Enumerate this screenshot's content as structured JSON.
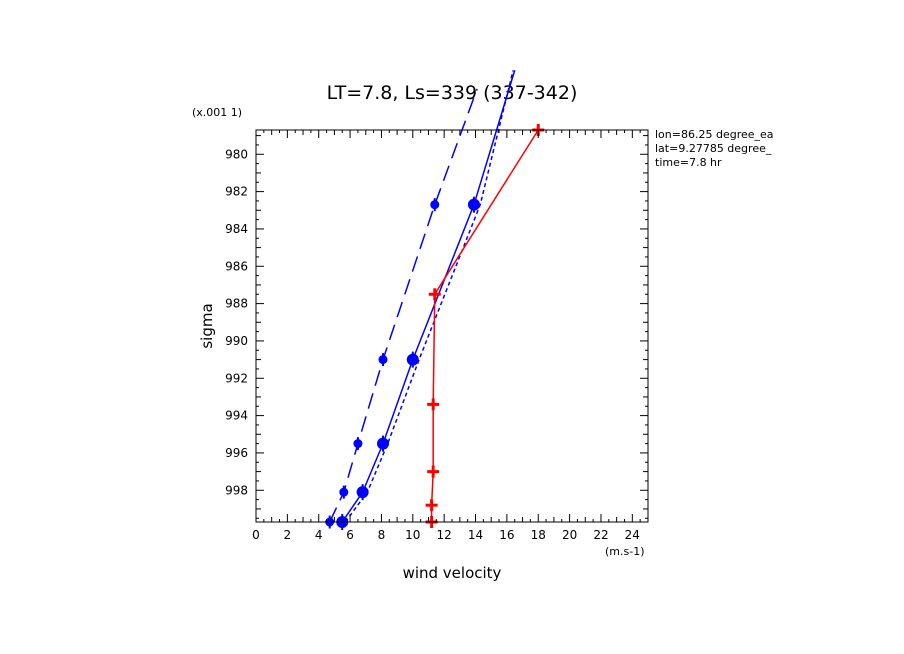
{
  "chart_data": {
    "type": "line",
    "title": "LT=7.8, Ls=339 (337-342)",
    "xlabel": "wind velocity",
    "ylabel": "sigma",
    "x_units": "(m.s-1)",
    "y_scale_note": "(x.001 1)",
    "xlim": [
      0,
      25
    ],
    "ylim": [
      999.7,
      978.7
    ],
    "x_ticks": [
      0,
      2,
      4,
      6,
      8,
      10,
      12,
      14,
      16,
      18,
      20,
      22,
      24
    ],
    "y_ticks": [
      980,
      982,
      984,
      986,
      988,
      990,
      992,
      994,
      996,
      998
    ],
    "annotations": [
      "lon=86.25 degree_ea",
      "lat=9.27785 degree_",
      "time=7.8 hr"
    ],
    "grid": false,
    "series": [
      {
        "style": "long-dash",
        "color": "#0000ff",
        "marker": "small",
        "points": [
          [
            4.7,
            999.7
          ],
          [
            5.6,
            998.1
          ],
          [
            6.5,
            995.5
          ],
          [
            8.1,
            991.0
          ],
          [
            11.4,
            982.7
          ],
          [
            14.1,
            976.5
          ]
        ]
      },
      {
        "style": "solid",
        "color": "#0000ff",
        "marker": "large",
        "points": [
          [
            5.5,
            999.7
          ],
          [
            6.8,
            998.1
          ],
          [
            8.1,
            995.5
          ],
          [
            10.0,
            991.0
          ],
          [
            13.9,
            982.7
          ],
          [
            16.5,
            975.5
          ]
        ]
      },
      {
        "style": "short-dash",
        "color": "#0000ff",
        "marker": "none",
        "points": [
          [
            5.7,
            999.7
          ],
          [
            7.1,
            998.1
          ],
          [
            8.4,
            995.5
          ],
          [
            10.4,
            991.0
          ],
          [
            14.3,
            982.7
          ],
          [
            16.4,
            975.5
          ]
        ]
      },
      {
        "style": "solid",
        "color": "#ff0000",
        "marker": "plus",
        "points": [
          [
            11.2,
            999.7
          ],
          [
            11.2,
            998.8
          ],
          [
            11.3,
            997.0
          ],
          [
            11.3,
            993.4
          ],
          [
            11.4,
            987.5
          ],
          [
            18.0,
            978.7
          ]
        ]
      }
    ]
  }
}
